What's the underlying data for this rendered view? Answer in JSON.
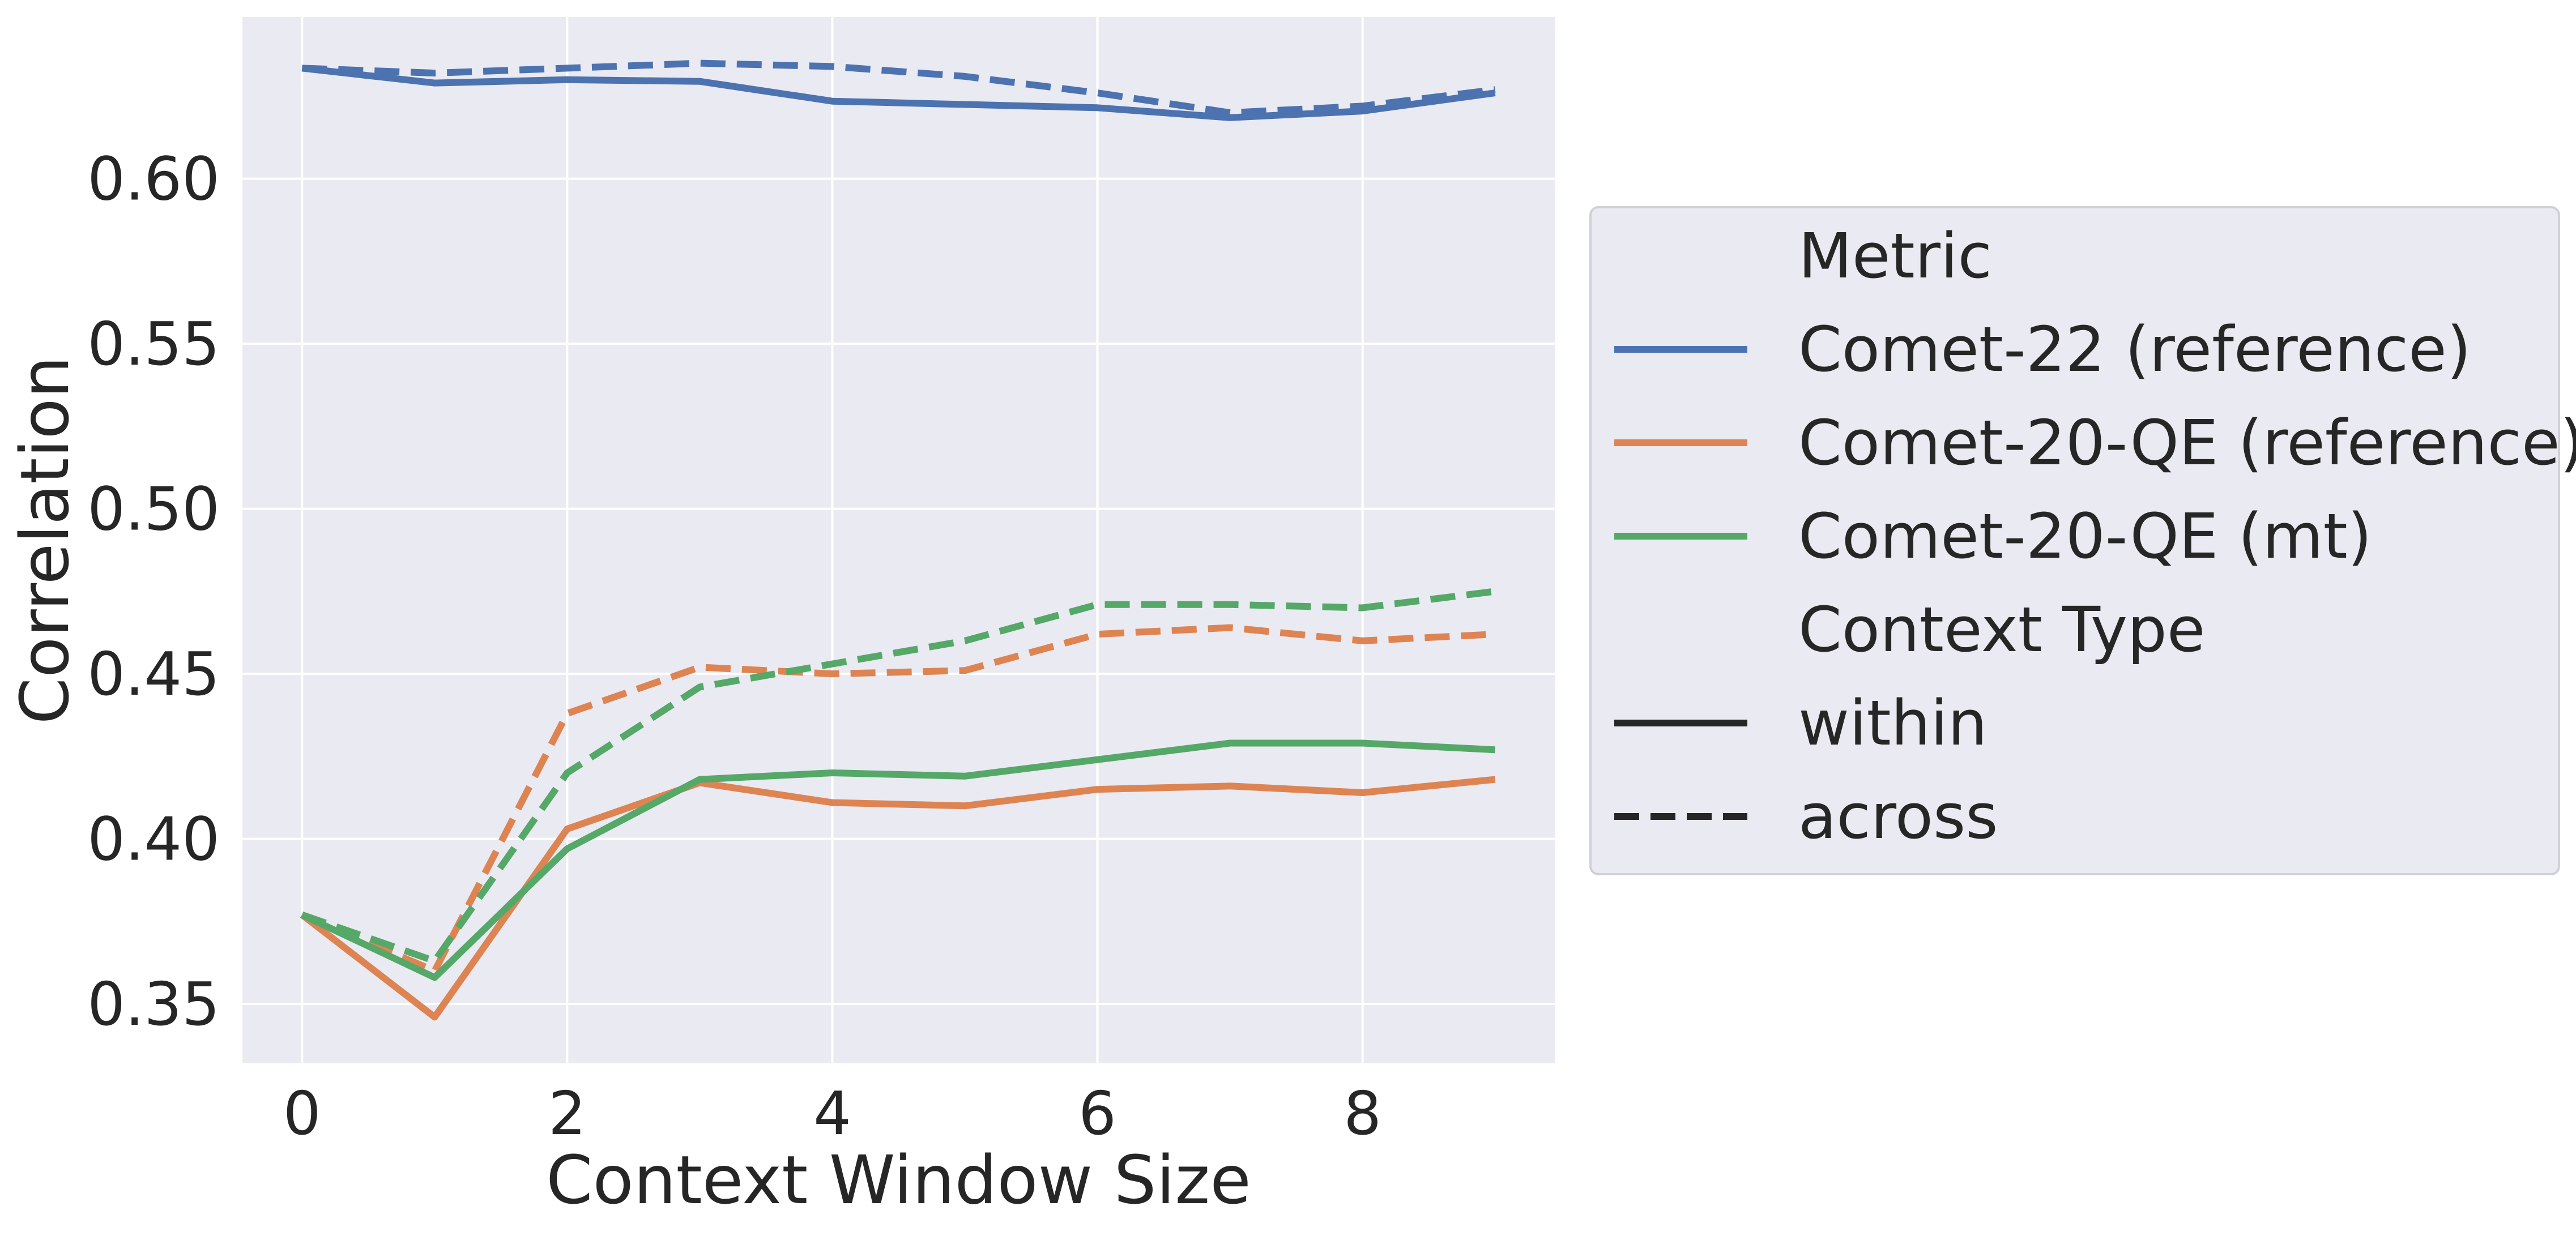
{
  "chart_data": {
    "type": "line",
    "xlabel": "Context Window Size",
    "ylabel": "Correlation",
    "xlim": [
      -0.45,
      9.45
    ],
    "ylim": [
      0.332,
      0.649
    ],
    "xticks": [
      0,
      2,
      4,
      6,
      8
    ],
    "xtick_labels": [
      "0",
      "2",
      "4",
      "6",
      "8"
    ],
    "yticks": [
      0.35,
      0.4,
      0.45,
      0.5,
      0.55,
      0.6
    ],
    "ytick_labels": [
      "0.35",
      "0.40",
      "0.45",
      "0.50",
      "0.55",
      "0.60"
    ],
    "grid": true,
    "legend_placement": "outside-right",
    "x": [
      0,
      1,
      2,
      3,
      4,
      5,
      6,
      7,
      8,
      9
    ],
    "metric_title": "Metric",
    "context_type_title": "Context Type",
    "metrics": [
      {
        "name": "Comet-22 (reference)",
        "color": "#4c72b0"
      },
      {
        "name": "Comet-20-QE (reference)",
        "color": "#dd8452"
      },
      {
        "name": "Comet-20-QE (mt)",
        "color": "#55a868"
      }
    ],
    "context_types": [
      {
        "name": "within",
        "dash": "solid"
      },
      {
        "name": "across",
        "dash": "dashed"
      }
    ],
    "series": [
      {
        "metric": "Comet-22 (reference)",
        "context": "within",
        "values": [
          0.6335,
          0.629,
          0.63,
          0.6295,
          0.6235,
          0.6225,
          0.6215,
          0.6185,
          0.6205,
          0.626
        ]
      },
      {
        "metric": "Comet-22 (reference)",
        "context": "across",
        "values": [
          0.6335,
          0.632,
          0.6335,
          0.635,
          0.634,
          0.631,
          0.626,
          0.62,
          0.622,
          0.627
        ]
      },
      {
        "metric": "Comet-20-QE (reference)",
        "context": "within",
        "values": [
          0.377,
          0.346,
          0.403,
          0.417,
          0.411,
          0.41,
          0.415,
          0.416,
          0.414,
          0.418
        ]
      },
      {
        "metric": "Comet-20-QE (reference)",
        "context": "across",
        "values": [
          0.377,
          0.36,
          0.438,
          0.452,
          0.45,
          0.451,
          0.462,
          0.464,
          0.46,
          0.462
        ]
      },
      {
        "metric": "Comet-20-QE (mt)",
        "context": "within",
        "values": [
          0.377,
          0.358,
          0.397,
          0.418,
          0.42,
          0.419,
          0.424,
          0.429,
          0.429,
          0.427
        ]
      },
      {
        "metric": "Comet-20-QE (mt)",
        "context": "across",
        "values": [
          0.377,
          0.363,
          0.42,
          0.446,
          0.453,
          0.46,
          0.471,
          0.471,
          0.47,
          0.475
        ]
      }
    ]
  }
}
